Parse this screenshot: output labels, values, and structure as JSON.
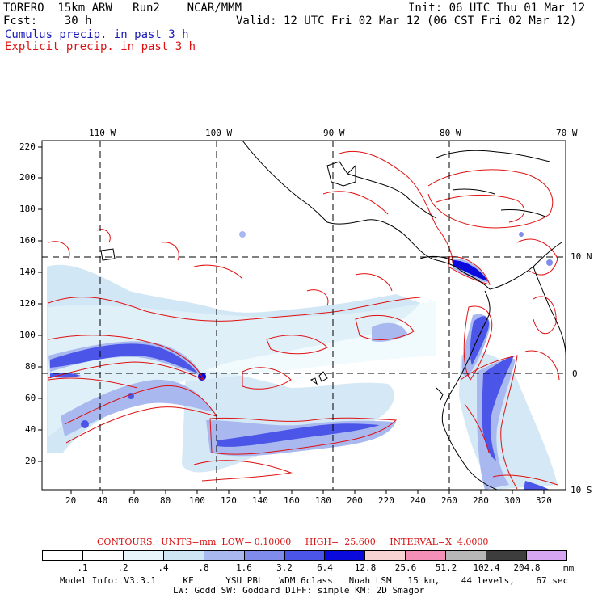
{
  "header": {
    "model": "TORERO  15km ARW   Run2    NCAR/MMM",
    "init": "Init: 06 UTC Thu 01 Mar 12",
    "fcst": "Fcst:    30 h",
    "valid": "Valid: 12 UTC Fri 02 Mar 12 (06 CST Fri 02 Mar 12)",
    "field1": "Cumulus precip. in past 3 h",
    "field2": "Explicit precip. in past 3 h"
  },
  "map": {
    "lon_labels": [
      "110 W",
      "100 W",
      "90 W",
      "80 W",
      "70 W"
    ],
    "lat_labels": [
      "10 N",
      "0",
      "10 S"
    ],
    "y_ticks": [
      "220",
      "200",
      "180",
      "160",
      "140",
      "120",
      "100",
      "80",
      "60",
      "40",
      "20"
    ],
    "x_ticks": [
      "20",
      "40",
      "60",
      "80",
      "100",
      "120",
      "140",
      "160",
      "180",
      "200",
      "220",
      "240",
      "260",
      "280",
      "300",
      "320"
    ],
    "colors": {
      "coast": "#000000",
      "explicit_contour": "#e01010",
      "grid": "#000000"
    }
  },
  "legend": {
    "contours": "CONTOURS:  UNITS=mm  LOW= 0.10000     HIGH=  25.600     INTERVAL=X  4.0000",
    "levels": [
      ".1",
      ".2",
      ".4",
      ".8",
      "1.6",
      "3.2",
      "6.4",
      "12.8",
      "25.6",
      "51.2",
      "102.4",
      "204.8"
    ],
    "unit": "mm",
    "colors": [
      "#ffffff",
      "#ffffff",
      "#ffffff",
      "#e8f6fb",
      "#cfe6f4",
      "#a9b9f0",
      "#7f8cec",
      "#4b55e8",
      "#0a0adc",
      "#f7d3d3",
      "#f48fb8",
      "#b7b7b7",
      "#3d3d3d",
      "#d7a6f2"
    ]
  },
  "footer": {
    "line1": "Model Info: V3.3.1     KF      YSU PBL   WDM 6class   Noah LSM   15 km,    44 levels,    67 sec",
    "line2": "LW: Godd SW: Goddard DIFF: simple KM: 2D Smagor"
  }
}
